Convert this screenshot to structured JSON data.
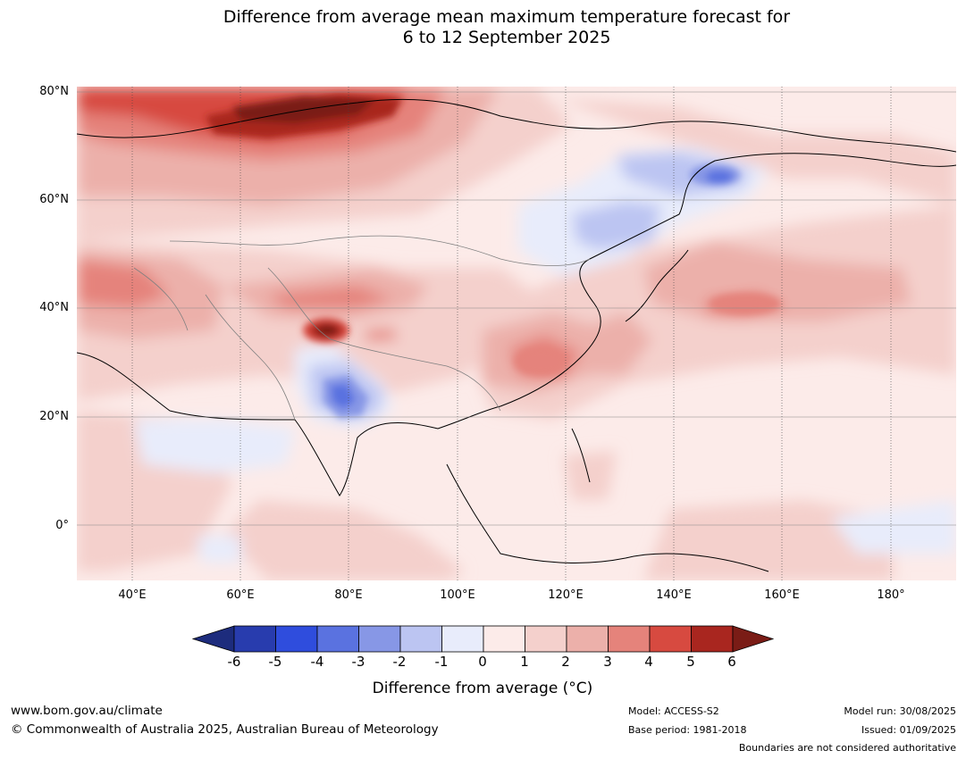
{
  "title": {
    "line1": "Difference from average mean maximum temperature forecast for",
    "line2": "6 to 12 September 2025"
  },
  "map": {
    "region": "Asia",
    "lat_labels": [
      "80°N",
      "60°N",
      "40°N",
      "20°N",
      "0°"
    ],
    "lon_labels": [
      "40°E",
      "60°E",
      "80°E",
      "100°E",
      "120°E",
      "140°E",
      "160°E",
      "180°"
    ],
    "lat_range": [
      -10,
      81
    ],
    "lon_range": [
      30,
      190
    ],
    "anomaly_features": [
      {
        "area": "Northern Russia / Arctic coast",
        "anomaly_min": 4,
        "anomaly_max": 6
      },
      {
        "area": "Western Tibetan Plateau / Kashmir",
        "anomaly_min": 5,
        "anomaly_max": 6
      },
      {
        "area": "Central-eastern China",
        "anomaly_min": 2,
        "anomaly_max": 3
      },
      {
        "area": "North Pacific east of Japan",
        "anomaly_min": 2,
        "anomaly_max": 3
      },
      {
        "area": "Northern India",
        "anomaly_min": -4,
        "anomaly_max": -2
      },
      {
        "area": "Mongolia / Lake Baikal",
        "anomaly_min": -2,
        "anomaly_max": -1
      },
      {
        "area": "Eastern Siberia",
        "anomaly_min": -3,
        "anomaly_max": -2
      }
    ]
  },
  "colorbar": {
    "ticks": [
      "-6",
      "-5",
      "-4",
      "-3",
      "-2",
      "-1",
      "0",
      "1",
      "2",
      "3",
      "4",
      "5",
      "6"
    ],
    "colors": [
      "#1d2c7d",
      "#283cae",
      "#2f4ddd",
      "#5a72e0",
      "#8797e6",
      "#bcc5f2",
      "#e8ecfb",
      "#fcebe9",
      "#f4d0cc",
      "#ecb0aa",
      "#e5837b",
      "#d74a40",
      "#a9261f",
      "#7a1c16"
    ],
    "label": "Difference from average (°C)"
  },
  "footer": {
    "website": "www.bom.gov.au/climate",
    "copyright": "© Commonwealth of Australia 2025, Australian Bureau of Meteorology",
    "model": "Model: ACCESS-S2",
    "base_period": "Base period: 1981-2018",
    "model_run": "Model run: 30/08/2025",
    "issued": "Issued: 01/09/2025",
    "disclaimer": "Boundaries are not considered authoritative"
  }
}
